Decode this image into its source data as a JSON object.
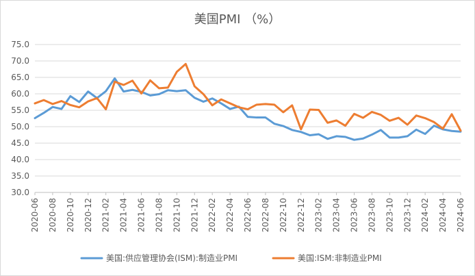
{
  "chart_data": {
    "type": "line",
    "title": "美国PMI （%）",
    "xlabel": "",
    "ylabel": "",
    "ylim": [
      30,
      75
    ],
    "y_ticks": [
      "30.0",
      "35.0",
      "40.0",
      "45.0",
      "50.0",
      "55.0",
      "60.0",
      "65.0",
      "70.0",
      "75.0"
    ],
    "x_tick_labels": [
      "2020-06",
      "2020-08",
      "2020-10",
      "2020-12",
      "2021-02",
      "2021-04",
      "2021-06",
      "2021-08",
      "2021-10",
      "2021-12",
      "2022-02",
      "2022-04",
      "2022-06",
      "2022-08",
      "2022-10",
      "2022-12",
      "2023-02",
      "2023-04",
      "2023-06",
      "2023-08",
      "2023-10",
      "2023-12",
      "2024-02",
      "2024-04",
      "2024-06"
    ],
    "x": [
      "2020-06",
      "2020-07",
      "2020-08",
      "2020-09",
      "2020-10",
      "2020-11",
      "2020-12",
      "2021-01",
      "2021-02",
      "2021-03",
      "2021-04",
      "2021-05",
      "2021-06",
      "2021-07",
      "2021-08",
      "2021-09",
      "2021-10",
      "2021-11",
      "2021-12",
      "2022-01",
      "2022-02",
      "2022-03",
      "2022-04",
      "2022-05",
      "2022-06",
      "2022-07",
      "2022-08",
      "2022-09",
      "2022-10",
      "2022-11",
      "2022-12",
      "2023-01",
      "2023-02",
      "2023-03",
      "2023-04",
      "2023-05",
      "2023-06",
      "2023-07",
      "2023-08",
      "2023-09",
      "2023-10",
      "2023-11",
      "2023-12",
      "2024-01",
      "2024-02",
      "2024-03",
      "2024-04",
      "2024-05",
      "2024-06"
    ],
    "grid": true,
    "legend_position": "bottom",
    "series": [
      {
        "name": "美国:供应管理协会(ISM):制造业PMI",
        "color": "#5B9BD5",
        "values": [
          52.6,
          54.2,
          56.0,
          55.4,
          59.3,
          57.5,
          60.7,
          58.7,
          60.8,
          64.7,
          60.7,
          61.2,
          60.6,
          59.5,
          59.9,
          61.1,
          60.8,
          61.1,
          58.8,
          57.6,
          58.6,
          57.1,
          55.4,
          56.1,
          53.0,
          52.8,
          52.8,
          50.9,
          50.2,
          49.0,
          48.4,
          47.4,
          47.7,
          46.3,
          47.1,
          46.9,
          46.0,
          46.4,
          47.6,
          49.0,
          46.7,
          46.7,
          47.1,
          49.1,
          47.8,
          50.3,
          49.2,
          48.7,
          48.5
        ]
      },
      {
        "name": "美国:ISM:非制造业PMI",
        "color": "#ED7D31",
        "values": [
          57.1,
          58.1,
          56.9,
          57.8,
          56.6,
          55.9,
          57.7,
          58.7,
          55.3,
          63.7,
          62.7,
          64.0,
          60.1,
          64.1,
          61.7,
          61.9,
          66.7,
          69.1,
          62.3,
          59.9,
          56.5,
          58.3,
          57.1,
          55.9,
          55.3,
          56.7,
          56.9,
          56.7,
          54.4,
          56.5,
          49.2,
          55.2,
          55.1,
          51.2,
          51.9,
          50.3,
          53.9,
          52.7,
          54.5,
          53.6,
          51.8,
          52.7,
          50.6,
          53.4,
          52.6,
          51.4,
          49.4,
          53.8,
          48.8
        ]
      }
    ]
  }
}
